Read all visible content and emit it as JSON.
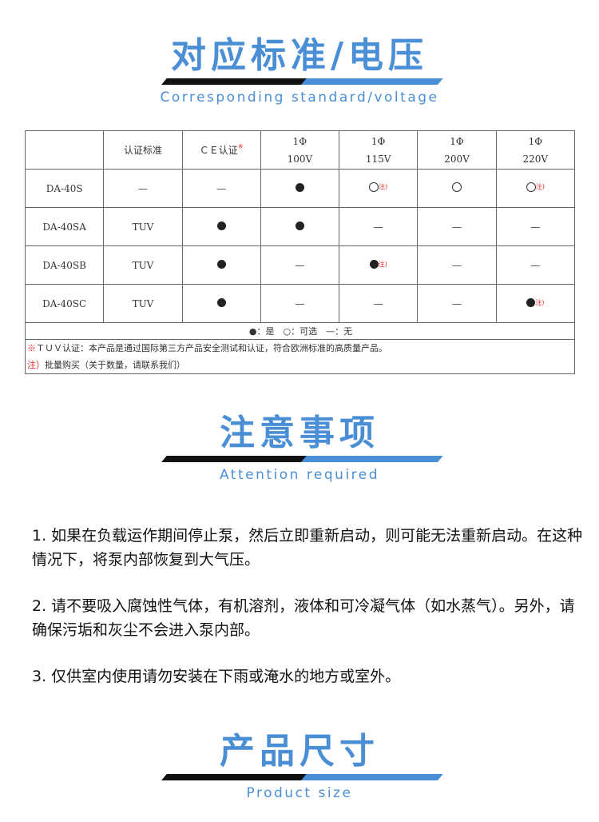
{
  "section1": {
    "title": "对应标准/电压",
    "subtitle": "Corresponding standard/voltage"
  },
  "table": {
    "headers": [
      "",
      "认证标准",
      "ＣＥ认证",
      "1Φ\n100V",
      "1Φ\n115V",
      "1Φ\n200V",
      "1Φ\n220V"
    ],
    "ce_mark": "※",
    "header_phase": "1Φ",
    "voltages": [
      "100V",
      "115V",
      "200V",
      "220V"
    ],
    "note_mark": "注)",
    "rows": [
      {
        "model": "DA-40S",
        "standard": "—",
        "ce": "dash",
        "v": [
          "filled",
          "open-note",
          "open",
          "open-note"
        ]
      },
      {
        "model": "DA-40SA",
        "standard": "TUV",
        "ce": "filled",
        "v": [
          "filled",
          "dash",
          "dash",
          "dash"
        ]
      },
      {
        "model": "DA-40SB",
        "standard": "TUV",
        "ce": "filled",
        "v": [
          "dash",
          "filled-note",
          "dash",
          "dash"
        ]
      },
      {
        "model": "DA-40SC",
        "standard": "TUV",
        "ce": "filled",
        "v": [
          "dash",
          "dash",
          "dash",
          "filled-note"
        ]
      }
    ],
    "legend": "●：是　○：可选　—：无",
    "note1_mark": "※",
    "note1": "ＴＵＶ认证：本产品是通过国际第三方产品安全测试和认证，符合欧洲标准的高质量产品。",
    "note2_mark": "注）",
    "note2": "批量购买（关于数量，请联系我们）"
  },
  "section2": {
    "title": "注意事项",
    "subtitle": "Attention required"
  },
  "attention": [
    "1. 如果在负载运作期间停止泵，然后立即重新启动，则可能无法重新启动。在这种情况下，将泵内部恢复到大气压。",
    "2. 请不要吸入腐蚀性气体，有机溶剂，液体和可冷凝气体（如水蒸气）。另外，请确保污垢和灰尘不会进入泵内部。",
    "3. 仅供室内使用请勿安装在下雨或淹水的地方或室外。"
  ],
  "section3": {
    "title": "产品尺寸",
    "subtitle": "Product size"
  },
  "colors": {
    "accent": "#4a8fd6",
    "note": "#e22222"
  }
}
